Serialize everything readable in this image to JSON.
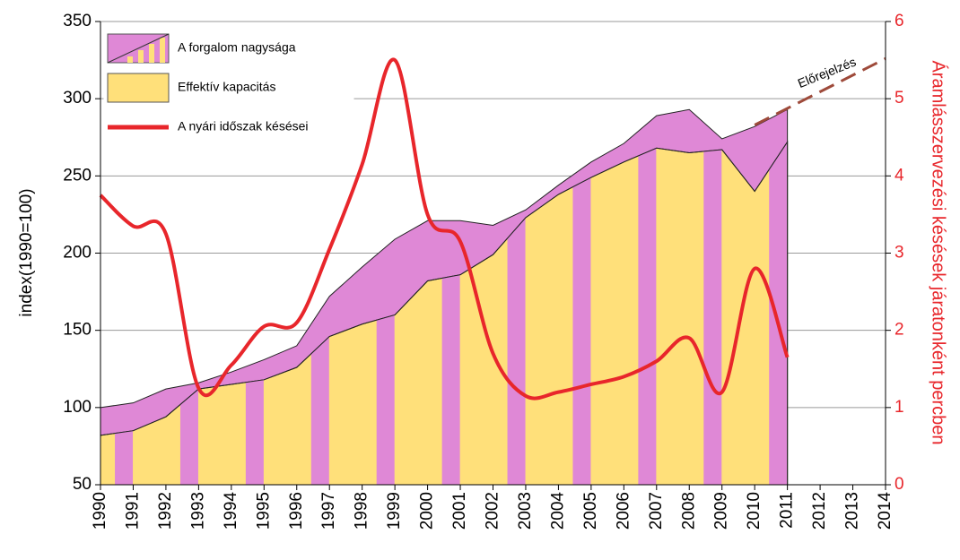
{
  "chart_data": {
    "type": "area",
    "y_label": "index(1990=100)",
    "y2_label": "Áramlásszervezési késések járatonként percben",
    "x": [
      1990,
      1991,
      1992,
      1993,
      1994,
      1995,
      1996,
      1997,
      1998,
      1999,
      2000,
      2001,
      2002,
      2003,
      2004,
      2005,
      2006,
      2007,
      2008,
      2009,
      2010,
      2011
    ],
    "series": [
      {
        "name": "A forgalom nagysága",
        "color": "#df88d6",
        "values": [
          100,
          103,
          112,
          116,
          123,
          131,
          140,
          172,
          191,
          209,
          221,
          221,
          218,
          228,
          244,
          259,
          271,
          289,
          293,
          274,
          282,
          293
        ]
      },
      {
        "name": "Effektív kapacitás",
        "color": "#ffe07a",
        "values": [
          82,
          85,
          94,
          112,
          115,
          118,
          126,
          146,
          154,
          160,
          182,
          186,
          199,
          223,
          238,
          249,
          259,
          268,
          265,
          267,
          240,
          272
        ]
      },
      {
        "name": "A nyári időszak késései",
        "color": "#e8262b",
        "axis": "y2",
        "values": [
          3.75,
          3.35,
          3.25,
          1.25,
          1.55,
          2.05,
          2.1,
          3.05,
          4.15,
          5.5,
          3.5,
          3.15,
          1.7,
          1.15,
          1.2,
          1.3,
          1.4,
          1.6,
          1.9,
          1.2,
          2.8,
          1.65
        ]
      }
    ],
    "forecast": {
      "name": "Előrejelzés",
      "color": "#9e4a3a",
      "x": [
        2010,
        2014
      ],
      "values": [
        283,
        326
      ]
    },
    "xlim": [
      1990,
      2014
    ],
    "xticks": [
      1990,
      1991,
      1992,
      1993,
      1994,
      1995,
      1996,
      1997,
      1998,
      1999,
      2000,
      2001,
      2002,
      2003,
      2004,
      2005,
      2006,
      2007,
      2008,
      2009,
      2010,
      2011,
      2012,
      2013,
      2014
    ],
    "ylim": [
      50,
      350
    ],
    "yticks": [
      50,
      100,
      150,
      200,
      250,
      300,
      350
    ],
    "y2lim": [
      0,
      6
    ],
    "y2ticks": [
      0,
      1,
      2,
      3,
      4,
      5,
      6
    ],
    "grid": true,
    "legend": "upper left"
  }
}
